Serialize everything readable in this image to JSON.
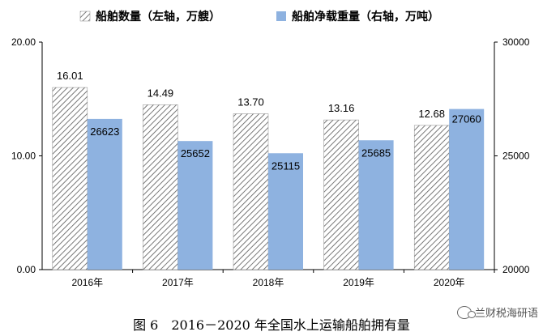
{
  "chart_data": {
    "type": "bar",
    "categories": [
      "2016年",
      "2017年",
      "2018年",
      "2019年",
      "2020年"
    ],
    "series": [
      {
        "name": "船舶数量（左轴，万艘）",
        "axis": "left",
        "pattern": "hatched",
        "values": [
          16.01,
          14.49,
          13.7,
          13.16,
          12.68
        ],
        "labels": [
          "16.01",
          "14.49",
          "13.70",
          "13.16",
          "12.68"
        ]
      },
      {
        "name": "船舶净载重量（右轴，万吨）",
        "axis": "right",
        "color": "#8eb2e0",
        "values": [
          26623,
          25652,
          25115,
          25685,
          27060
        ],
        "labels": [
          "26623",
          "25652",
          "25115",
          "25685",
          "27060"
        ]
      }
    ],
    "left_axis": {
      "ylim": [
        0,
        20
      ],
      "ticks": [
        "0.00",
        "10.00",
        "20.00"
      ]
    },
    "right_axis": {
      "ylim": [
        20000,
        30000
      ],
      "ticks": [
        "20000",
        "25000",
        "30000"
      ]
    },
    "legend_position": "top",
    "grid": false
  },
  "caption": "图 6　2016－2020 年全国水上运输船舶拥有量",
  "watermark": "兰财税海研语"
}
